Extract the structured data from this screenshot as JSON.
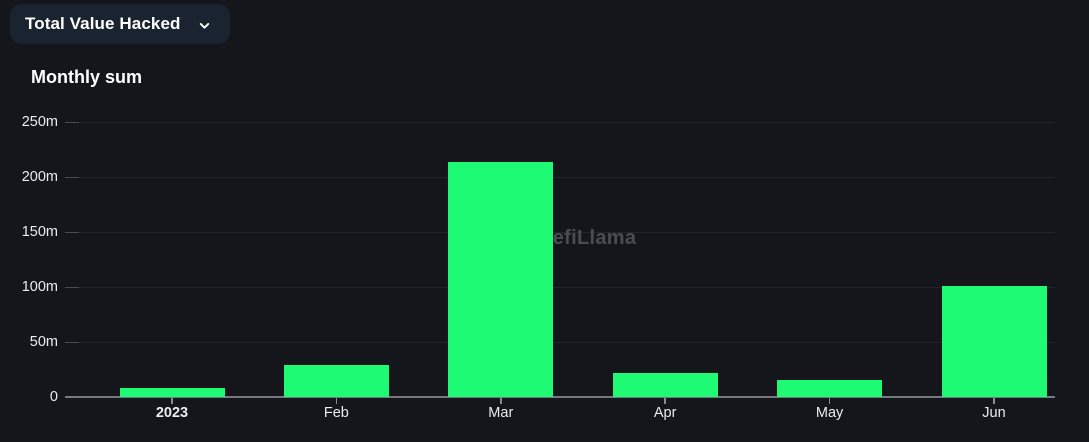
{
  "dropdown": {
    "label": "Total Value Hacked",
    "chevron_icon": "chevron-down"
  },
  "watermark": {
    "text": "DefiLlama"
  },
  "chart_data": {
    "type": "bar",
    "title": "Monthly sum",
    "categories": [
      "2023",
      "Feb",
      "Mar",
      "Apr",
      "May",
      "Jun"
    ],
    "values": [
      8,
      29,
      213,
      22,
      15,
      101
    ],
    "unit": "m",
    "y_ticks": [
      0,
      50,
      100,
      150,
      200,
      250
    ],
    "y_tick_labels": [
      "0",
      "50m",
      "100m",
      "150m",
      "200m",
      "250m"
    ],
    "ylim": [
      0,
      250
    ],
    "xlabel": "",
    "ylabel": "",
    "grid": true,
    "legend": "none",
    "emphasized_category": "2023",
    "colors": {
      "bar": "#1efa73",
      "background": "#15161b",
      "dropdown_bg": "#1a2330",
      "grid_line": "#232429",
      "axis_line": "#77787e",
      "text": "#ffffff",
      "axis_text": "#ececee",
      "watermark": "#55565c"
    }
  }
}
